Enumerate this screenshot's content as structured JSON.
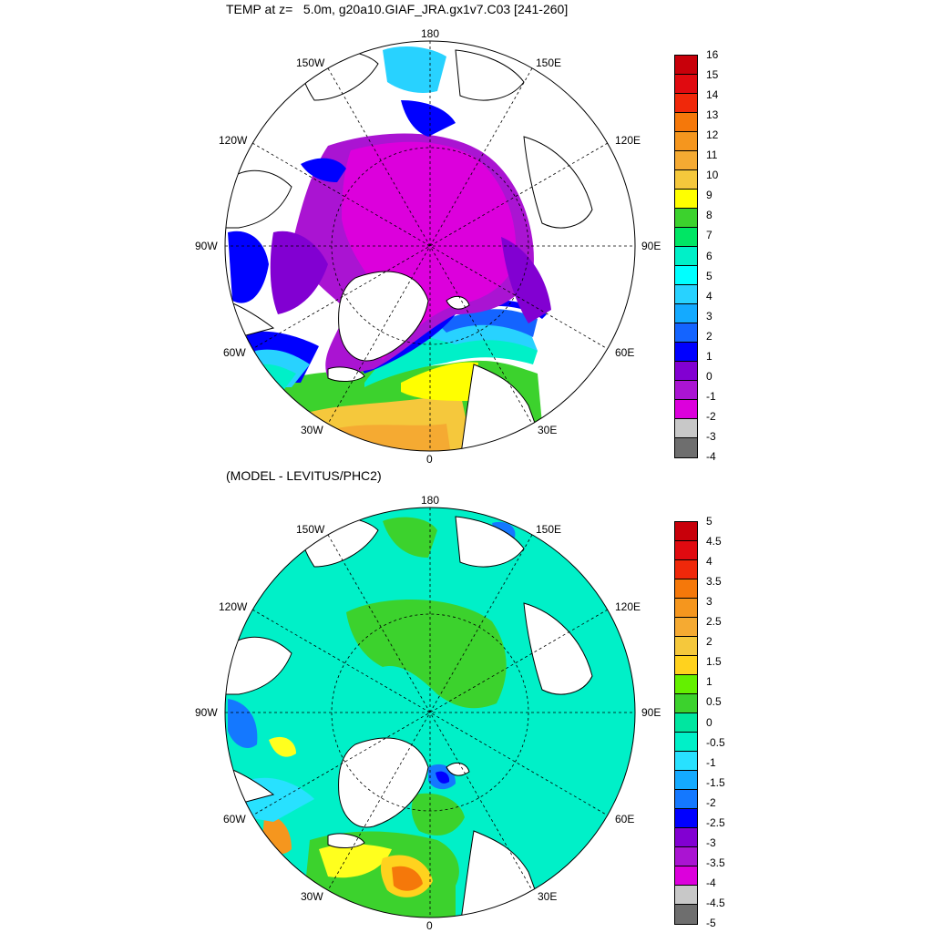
{
  "panel1": {
    "title": "TEMP at z=   5.0m, g20a10.GIAF_JRA.gx1v7.C03 [241-260]",
    "lon_labels": {
      "top": "180",
      "bottom": "0",
      "left": "90W",
      "right": "90E",
      "ul1": "150W",
      "ul2": "120W",
      "ur1": "150E",
      "ur2": "120E",
      "ll1": "60W",
      "ll2": "30W",
      "lr1": "60E",
      "lr2": "30E"
    },
    "colorbar": {
      "labels": [
        "16",
        "15",
        "14",
        "13",
        "12",
        "11",
        "10",
        "9",
        "8",
        "7",
        "6",
        "5",
        "4",
        "3",
        "2",
        "1",
        "0",
        "-1",
        "-2",
        "-3",
        "-4"
      ],
      "colors": [
        "#c8000a",
        "#e00a10",
        "#f0280a",
        "#f5780a",
        "#f5961e",
        "#f5aa32",
        "#f5c83c",
        "#ffff00",
        "#3cd22d",
        "#00e664",
        "#00f0c8",
        "#00ffff",
        "#28d2ff",
        "#14aaff",
        "#1464ff",
        "#0000ff",
        "#8200d2",
        "#aa14d2",
        "#dc00dc",
        "#c8c8c8",
        "#6e6e6e"
      ]
    }
  },
  "panel2": {
    "title": "(MODEL - LEVITUS/PHC2)",
    "lon_labels": {
      "top": "180",
      "bottom": "0",
      "left": "90W",
      "right": "90E",
      "ul1": "150W",
      "ul2": "120W",
      "ur1": "150E",
      "ur2": "120E",
      "ll1": "60W",
      "ll2": "30W",
      "lr1": "60E",
      "lr2": "30E"
    },
    "colorbar": {
      "labels": [
        "5",
        "4.5",
        "4",
        "3.5",
        "3",
        "2.5",
        "2",
        "1.5",
        "1",
        "0.5",
        "0",
        "-0.5",
        "-1",
        "-1.5",
        "-2",
        "-2.5",
        "-3",
        "-3.5",
        "-4",
        "-4.5",
        "-5"
      ],
      "colors": [
        "#c8000a",
        "#e00a10",
        "#f0280a",
        "#f5780a",
        "#f5961e",
        "#f5aa32",
        "#f5c83c",
        "#ffd21e",
        "#64f000",
        "#3cd22d",
        "#00e6a0",
        "#00f0c8",
        "#28e1ff",
        "#14aaff",
        "#1478ff",
        "#0000ff",
        "#8200d2",
        "#aa14d2",
        "#dc00dc",
        "#c8c8c8",
        "#6e6e6e"
      ]
    }
  }
}
